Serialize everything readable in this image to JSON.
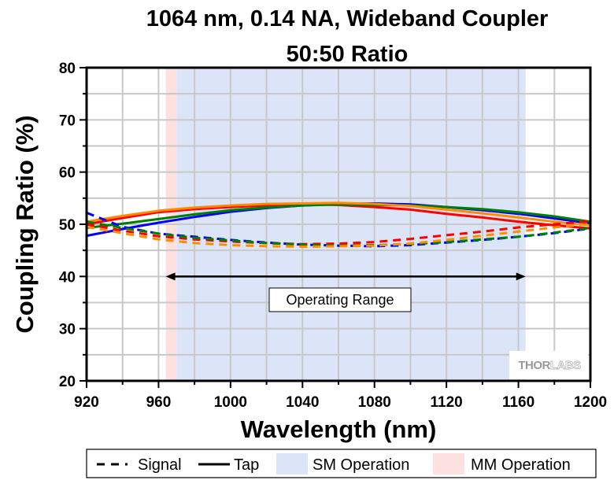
{
  "chart_data": {
    "type": "line",
    "title": "1064 nm, 0.14 NA, Wideband Coupler",
    "subtitle": "50:50 Ratio",
    "xlabel": "Wavelength (nm)",
    "ylabel": "Coupling Ratio (%)",
    "xlim": [
      920,
      1200
    ],
    "ylim": [
      20,
      80
    ],
    "xticks": [
      920,
      960,
      1000,
      1040,
      1080,
      1120,
      1160,
      1200
    ],
    "yticks": [
      20,
      30,
      40,
      50,
      60,
      70,
      80
    ],
    "grid": true,
    "x": [
      920,
      940,
      960,
      980,
      1000,
      1020,
      1040,
      1060,
      1080,
      1100,
      1120,
      1140,
      1160,
      1180,
      1200
    ],
    "series": [
      {
        "name": "Tap (blue)",
        "color": "#0000ff",
        "style": "solid",
        "values": [
          47.8,
          49.1,
          50.3,
          51.4,
          52.4,
          53.1,
          53.6,
          53.9,
          54.0,
          53.8,
          53.3,
          52.7,
          52.0,
          51.1,
          50.2
        ]
      },
      {
        "name": "Tap (red)",
        "color": "#ff0000",
        "style": "solid",
        "values": [
          50.0,
          51.2,
          52.3,
          52.9,
          53.3,
          53.6,
          53.8,
          53.7,
          53.3,
          52.8,
          52.0,
          51.3,
          50.5,
          49.8,
          49.2
        ]
      },
      {
        "name": "Tap (green)",
        "color": "#008000",
        "style": "solid",
        "values": [
          49.3,
          50.1,
          51.0,
          51.9,
          52.7,
          53.2,
          53.6,
          53.8,
          53.7,
          53.6,
          53.3,
          52.9,
          52.3,
          51.5,
          50.5
        ]
      },
      {
        "name": "Tap (orange)",
        "color": "#ff8c00",
        "style": "solid",
        "values": [
          50.5,
          51.6,
          52.6,
          53.2,
          53.6,
          53.9,
          54.0,
          54.1,
          53.9,
          53.5,
          52.8,
          52.1,
          51.3,
          50.5,
          49.8
        ]
      },
      {
        "name": "Signal (blue)",
        "color": "#0000ff",
        "style": "dashed",
        "values": [
          52.2,
          49.5,
          48.2,
          47.6,
          47.0,
          46.5,
          46.1,
          45.9,
          45.8,
          46.0,
          46.5,
          47.0,
          47.6,
          48.3,
          49.2
        ]
      },
      {
        "name": "Signal (red)",
        "color": "#ff0000",
        "style": "dashed",
        "values": [
          50.0,
          48.8,
          47.7,
          47.1,
          46.7,
          46.4,
          46.2,
          46.3,
          46.6,
          47.2,
          47.9,
          48.6,
          49.4,
          50.0,
          50.6
        ]
      },
      {
        "name": "Signal (green)",
        "color": "#008000",
        "style": "dashed",
        "values": [
          50.5,
          49.3,
          48.2,
          47.4,
          46.9,
          46.4,
          46.1,
          45.9,
          46.0,
          46.2,
          46.6,
          47.1,
          47.6,
          48.4,
          49.3
        ]
      },
      {
        "name": "Signal (orange)",
        "color": "#ff8c00",
        "style": "dashed",
        "values": [
          49.5,
          48.3,
          47.1,
          46.4,
          46.0,
          45.8,
          45.7,
          45.8,
          45.9,
          46.3,
          47.0,
          47.8,
          48.6,
          49.4,
          50.1
        ]
      }
    ],
    "bands": [
      {
        "name": "MM Operation",
        "color": "#fde0e0",
        "range": [
          964,
          970
        ]
      },
      {
        "name": "SM Operation",
        "color": "#dce5f7",
        "range": [
          970,
          1164
        ]
      }
    ],
    "annotation": {
      "text": "Operating Range",
      "arrow_range": [
        964,
        1164
      ],
      "arrow_y": 40
    },
    "legend": {
      "placement": "bottom",
      "entries": [
        {
          "label": "Signal",
          "kind": "dashed-line"
        },
        {
          "label": "Tap",
          "kind": "solid-line"
        },
        {
          "label": "SM Operation",
          "kind": "swatch",
          "color": "#dce5f7"
        },
        {
          "label": "MM Operation",
          "kind": "swatch",
          "color": "#fde0e0"
        }
      ]
    },
    "watermark": {
      "part1": "THOR",
      "part2": "LABS"
    }
  }
}
